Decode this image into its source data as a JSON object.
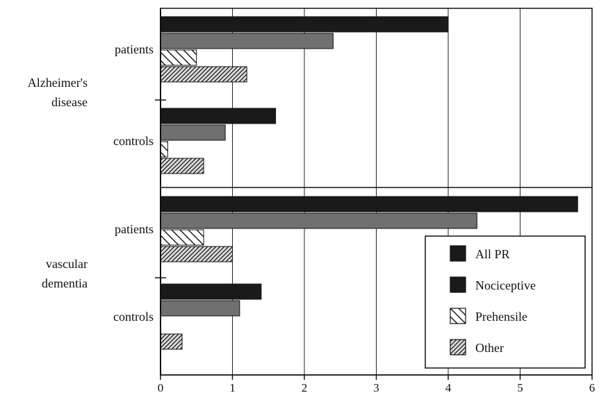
{
  "chart_data": {
    "type": "bar",
    "orientation": "horizontal",
    "x_ticks": [
      "0",
      "1",
      "2",
      "3",
      "4",
      "5",
      "6"
    ],
    "xlim": [
      0,
      6
    ],
    "grid": "vertical",
    "legend_position": "bottom-right",
    "groups": [
      {
        "label_lines": [
          "Alzheimer's",
          "disease"
        ],
        "categories": [
          {
            "label": "patients",
            "values": [
              4.0,
              2.4,
              0.5,
              1.2
            ]
          },
          {
            "label": "controls",
            "values": [
              1.6,
              0.9,
              0.1,
              0.6
            ]
          }
        ]
      },
      {
        "label_lines": [
          "vascular",
          "dementia"
        ],
        "categories": [
          {
            "label": "patients",
            "values": [
              5.8,
              4.4,
              0.6,
              1.0
            ]
          },
          {
            "label": "controls",
            "values": [
              1.4,
              1.1,
              0.0,
              0.3
            ]
          }
        ]
      }
    ],
    "series": [
      {
        "name": "All PR",
        "fill": "solid-dark",
        "color": "#1a1a1a"
      },
      {
        "name": "Nociceptive",
        "fill": "solid-gray",
        "color": "#6e6e6e"
      },
      {
        "name": "Prehensile",
        "fill": "sparse-hatch",
        "color": "#222222"
      },
      {
        "name": "Other",
        "fill": "dense-hatch",
        "color": "#222222"
      }
    ]
  }
}
